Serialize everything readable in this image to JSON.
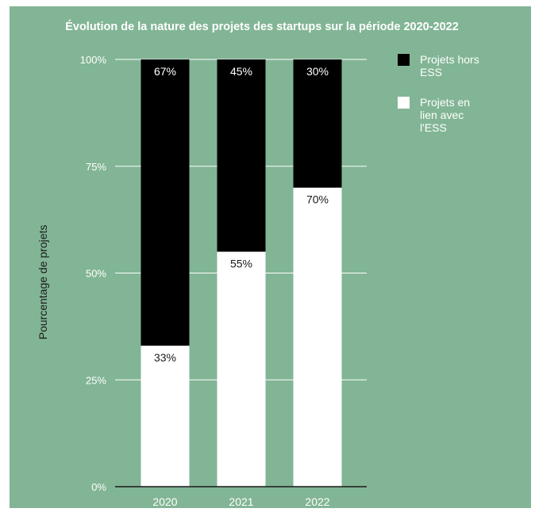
{
  "chart_data": {
    "type": "bar",
    "stacked": true,
    "percent": true,
    "title": "Évolution de la nature des projets des startups sur la période 2020-2022",
    "xlabel": "",
    "ylabel": "Pourcentage de projets",
    "categories": [
      "2020",
      "2021",
      "2022"
    ],
    "ylim": [
      0,
      100
    ],
    "y_ticks": [
      0,
      25,
      50,
      75,
      100
    ],
    "y_tick_labels": [
      "0%",
      "25%",
      "50%",
      "75%",
      "100%"
    ],
    "grid": true,
    "legend_position": "right",
    "series": [
      {
        "name": "Projets en lien avec l'ESS",
        "legend_lines": [
          "Projets en",
          "lien avec",
          "l'ESS"
        ],
        "values": [
          33,
          55,
          70
        ],
        "labels": [
          "33%",
          "55%",
          "70%"
        ],
        "color": "#ffffff",
        "label_color": "#1a1a1a"
      },
      {
        "name": "Projets hors ESS",
        "legend_lines": [
          "Projets hors",
          "ESS"
        ],
        "values": [
          67,
          45,
          30
        ],
        "labels": [
          "67%",
          "45%",
          "30%"
        ],
        "color": "#000000",
        "label_color": "#ffffff"
      }
    ]
  },
  "colors": {
    "background": "#82b595",
    "title": "#ffffff",
    "axis_text": "#ffffff",
    "ylabel_text": "#1a1a1a",
    "gridline": "#ffffff",
    "baseline": "#1a1a1a",
    "legend_text": "#ffffff"
  }
}
